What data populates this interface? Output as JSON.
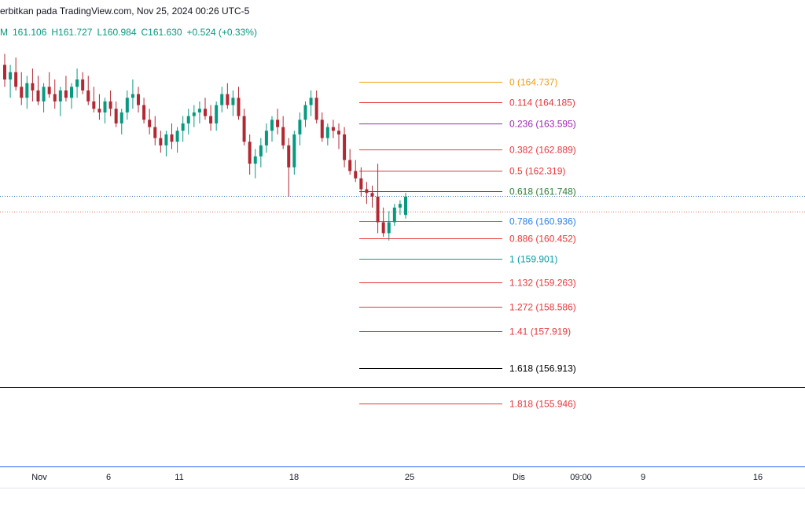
{
  "header": {
    "publish_text": "erbitkan pada TradingView.com, Nov 25, 2024 00:26 UTC-5"
  },
  "ohlc": {
    "prefix": "M",
    "open": "161.106",
    "high": "H161.727",
    "low": "L160.984",
    "close": "C161.630",
    "change": "+0.524 (+0.33%)"
  },
  "colors": {
    "up": "#089981",
    "down": "#b22833",
    "axis_line": "#2962ff",
    "grid_dot_blue": "#2a62a8",
    "grid_dot_red": "#e07a5f"
  },
  "chart_data": {
    "type": "candlestick",
    "price_range": [
      155.4,
      165.8
    ],
    "x_axis_ticks": [
      "Nov",
      "6",
      "11",
      "18",
      "25",
      "Dis",
      "09:00",
      "9",
      "16"
    ],
    "fib_levels": [
      {
        "label": "0 (164.737)",
        "ratio": 0,
        "price": 164.737,
        "color": "#f59d0c"
      },
      {
        "label": "0.114 (164.185)",
        "ratio": 0.114,
        "price": 164.185,
        "color": "#e8373d"
      },
      {
        "label": "0.236 (163.595)",
        "ratio": 0.236,
        "price": 163.595,
        "color": "#9c27b0"
      },
      {
        "label": "0.382 (162.889)",
        "ratio": 0.382,
        "price": 162.889,
        "color": "#e8373d"
      },
      {
        "label": "0.5 (162.319)",
        "ratio": 0.5,
        "price": 162.319,
        "color": "#e8373d"
      },
      {
        "label": "0.618 (161.748)",
        "ratio": 0.618,
        "price": 161.748,
        "color": "#2e7d32"
      },
      {
        "label": "0.786 (160.936)",
        "ratio": 0.786,
        "price": 160.936,
        "color": "#2f80ed"
      },
      {
        "label": "0.886 (160.452)",
        "ratio": 0.886,
        "price": 160.452,
        "color": "#e8373d"
      },
      {
        "label": "1 (159.901)",
        "ratio": 1,
        "price": 159.901,
        "color": "#089ba3"
      },
      {
        "label": "1.132 (159.263)",
        "ratio": 1.132,
        "price": 159.263,
        "color": "#e8373d"
      },
      {
        "label": "1.272 (158.586)",
        "ratio": 1.272,
        "price": 158.586,
        "color": "#e8373d"
      },
      {
        "label": "1.41 (157.919)",
        "ratio": 1.41,
        "price": 157.919,
        "color": "#e8373d"
      },
      {
        "label": "1.618 (156.913)",
        "ratio": 1.618,
        "price": 156.913,
        "color": "#000000"
      },
      {
        "label": "1.818 (155.946)",
        "ratio": 1.818,
        "price": 155.946,
        "color": "#e8373d"
      }
    ],
    "horizontal_lines": [
      {
        "price": 161.63,
        "style": "dotted",
        "color": "#2a62a8"
      },
      {
        "price": 161.2,
        "style": "dotted",
        "color": "#e07a5f"
      },
      {
        "price": 156.4,
        "style": "solid",
        "color": "#000000"
      }
    ],
    "candles": [
      [
        165.2,
        165.5,
        164.6,
        164.8
      ],
      [
        164.8,
        165.2,
        164.3,
        165.0
      ],
      [
        165.0,
        165.4,
        164.5,
        164.6
      ],
      [
        164.6,
        165.0,
        164.1,
        164.3
      ],
      [
        164.3,
        164.9,
        164.0,
        164.7
      ],
      [
        164.7,
        165.1,
        164.2,
        164.5
      ],
      [
        164.5,
        164.9,
        164.1,
        164.2
      ],
      [
        164.2,
        164.7,
        163.9,
        164.6
      ],
      [
        164.6,
        165.0,
        164.3,
        164.4
      ],
      [
        164.4,
        164.8,
        164.0,
        164.2
      ],
      [
        164.2,
        164.6,
        163.8,
        164.5
      ],
      [
        164.5,
        164.9,
        164.2,
        164.3
      ],
      [
        164.3,
        164.7,
        164.0,
        164.6
      ],
      [
        164.6,
        165.1,
        164.3,
        164.8
      ],
      [
        164.8,
        165.0,
        164.4,
        164.5
      ],
      [
        164.5,
        164.9,
        164.1,
        164.2
      ],
      [
        164.2,
        164.6,
        163.9,
        164.0
      ],
      [
        164.0,
        164.4,
        163.7,
        163.9
      ],
      [
        163.9,
        164.3,
        163.6,
        164.2
      ],
      [
        164.2,
        164.5,
        163.8,
        164.0
      ],
      [
        164.0,
        164.2,
        163.5,
        163.6
      ],
      [
        163.6,
        164.0,
        163.3,
        163.9
      ],
      [
        163.9,
        164.5,
        163.7,
        164.3
      ],
      [
        164.3,
        164.8,
        164.0,
        164.4
      ],
      [
        164.4,
        164.6,
        163.9,
        164.1
      ],
      [
        164.1,
        164.3,
        163.6,
        163.7
      ],
      [
        163.7,
        164.0,
        163.3,
        163.5
      ],
      [
        163.5,
        163.8,
        163.0,
        163.2
      ],
      [
        163.2,
        163.4,
        162.8,
        163.0
      ],
      [
        163.0,
        163.4,
        162.7,
        163.3
      ],
      [
        163.3,
        163.6,
        162.9,
        163.1
      ],
      [
        163.1,
        163.5,
        162.8,
        163.4
      ],
      [
        163.4,
        163.8,
        163.1,
        163.6
      ],
      [
        163.6,
        164.0,
        163.3,
        163.8
      ],
      [
        163.8,
        164.1,
        163.5,
        163.9
      ],
      [
        163.9,
        164.2,
        163.6,
        164.0
      ],
      [
        164.0,
        164.3,
        163.7,
        163.8
      ],
      [
        163.8,
        164.1,
        163.4,
        163.6
      ],
      [
        163.6,
        164.2,
        163.4,
        164.1
      ],
      [
        164.1,
        164.6,
        163.9,
        164.4
      ],
      [
        164.4,
        164.7,
        164.0,
        164.1
      ],
      [
        164.1,
        164.5,
        163.8,
        164.3
      ],
      [
        164.3,
        164.6,
        163.7,
        163.8
      ],
      [
        163.8,
        164.0,
        163.0,
        163.1
      ],
      [
        163.1,
        163.3,
        162.2,
        162.5
      ],
      [
        162.5,
        162.9,
        162.1,
        162.7
      ],
      [
        162.7,
        163.2,
        162.4,
        163.0
      ],
      [
        163.0,
        163.6,
        162.8,
        163.4
      ],
      [
        163.4,
        163.8,
        163.1,
        163.7
      ],
      [
        163.7,
        164.0,
        163.3,
        163.5
      ],
      [
        163.5,
        163.8,
        162.9,
        163.0
      ],
      [
        163.0,
        163.2,
        161.6,
        162.4
      ],
      [
        162.4,
        163.4,
        162.2,
        163.3
      ],
      [
        163.3,
        163.9,
        163.0,
        163.7
      ],
      [
        163.7,
        164.2,
        163.5,
        164.1
      ],
      [
        164.1,
        164.5,
        163.8,
        164.3
      ],
      [
        164.3,
        164.5,
        163.6,
        163.7
      ],
      [
        163.7,
        163.9,
        163.1,
        163.2
      ],
      [
        163.2,
        163.6,
        163.0,
        163.5
      ],
      [
        163.5,
        163.7,
        163.2,
        163.4
      ],
      [
        163.4,
        163.6,
        162.9,
        163.3
      ],
      [
        163.3,
        163.5,
        162.4,
        162.6
      ],
      [
        162.6,
        162.9,
        162.2,
        162.3
      ],
      [
        162.3,
        162.6,
        162.0,
        162.1
      ],
      [
        162.1,
        162.4,
        161.6,
        161.8
      ],
      [
        161.8,
        162.0,
        161.4,
        161.7
      ],
      [
        161.7,
        161.9,
        161.3,
        161.6
      ],
      [
        161.6,
        162.5,
        160.6,
        160.9
      ],
      [
        160.9,
        161.3,
        160.5,
        160.6
      ],
      [
        160.6,
        161.2,
        160.4,
        160.9
      ],
      [
        160.9,
        161.4,
        160.8,
        161.3
      ],
      [
        161.3,
        161.5,
        161.1,
        161.4
      ],
      [
        161.1,
        161.7,
        161.0,
        161.6
      ]
    ]
  }
}
